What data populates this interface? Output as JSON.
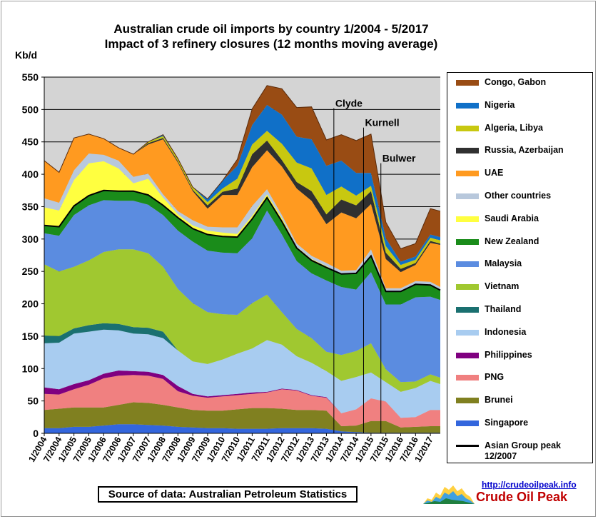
{
  "chart_data": {
    "type": "area",
    "title": "Australian crude oil imports  by country 1/2004 - 5/2017",
    "subtitle": "Impact of 3 refinery closures (12 months moving average)",
    "ylabel": "Kb/d",
    "ylim": [
      0,
      550
    ],
    "yticks": [
      0,
      50,
      100,
      150,
      200,
      250,
      300,
      350,
      400,
      450,
      500,
      550
    ],
    "grid": true,
    "stacked": true,
    "x": [
      "1/2004",
      "7/2004",
      "1/2005",
      "7/2005",
      "1/2006",
      "7/2006",
      "1/2007",
      "7/2007",
      "1/2008",
      "7/2008",
      "1/2009",
      "7/2009",
      "1/2010",
      "7/2010",
      "1/2011",
      "7/2011",
      "1/2012",
      "7/2012",
      "1/2013",
      "7/2013",
      "1/2014",
      "7/2014",
      "1/2015",
      "7/2015",
      "1/2016",
      "7/2016",
      "1/2017",
      "5/2017"
    ],
    "xticklabels": [
      "1/2004",
      "7/2004",
      "1/2005",
      "7/2005",
      "1/2006",
      "7/2006",
      "1/2007",
      "7/2007",
      "1/2008",
      "7/2008",
      "1/2009",
      "7/2009",
      "1/2010",
      "7/2010",
      "1/2011",
      "7/2011",
      "1/2012",
      "7/2012",
      "1/2013",
      "7/2013",
      "1/2014",
      "7/2014",
      "1/2015",
      "7/2015",
      "1/2016",
      "7/2016",
      "1/2017"
    ],
    "series": [
      {
        "name": "Singapore",
        "color": "#3366dd",
        "values": [
          8,
          8,
          10,
          10,
          12,
          14,
          14,
          13,
          12,
          10,
          9,
          8,
          8,
          7,
          7,
          7,
          8,
          8,
          8,
          7,
          3,
          2,
          1,
          1,
          1,
          1,
          1,
          1
        ]
      },
      {
        "name": "Brunei",
        "color": "#808020",
        "values": [
          28,
          30,
          30,
          30,
          28,
          30,
          34,
          34,
          32,
          30,
          27,
          27,
          27,
          30,
          32,
          32,
          30,
          28,
          28,
          28,
          8,
          10,
          18,
          18,
          8,
          9,
          10,
          10
        ]
      },
      {
        "name": "PNG",
        "color": "#f08080",
        "values": [
          25,
          22,
          28,
          35,
          45,
          45,
          42,
          42,
          40,
          25,
          22,
          20,
          22,
          22,
          22,
          24,
          30,
          30,
          22,
          20,
          20,
          25,
          35,
          30,
          15,
          15,
          25,
          25
        ]
      },
      {
        "name": "Philippines",
        "color": "#800080",
        "values": [
          10,
          8,
          8,
          7,
          7,
          8,
          6,
          6,
          6,
          8,
          3,
          2,
          2,
          2,
          2,
          1,
          1,
          1,
          1,
          1,
          0,
          0,
          0,
          0,
          0,
          0,
          0,
          0
        ]
      },
      {
        "name": "Indonesia",
        "color": "#a8ccf0",
        "values": [
          68,
          72,
          78,
          75,
          68,
          62,
          58,
          58,
          57,
          55,
          50,
          50,
          55,
          62,
          68,
          80,
          68,
          52,
          50,
          40,
          50,
          50,
          40,
          30,
          40,
          45,
          45,
          40
        ]
      },
      {
        "name": "Thailand",
        "color": "#1a7070",
        "values": [
          12,
          10,
          8,
          10,
          10,
          10,
          10,
          10,
          10,
          0,
          0,
          0,
          0,
          0,
          0,
          0,
          0,
          0,
          0,
          0,
          0,
          0,
          0,
          0,
          0,
          0,
          0,
          0
        ]
      },
      {
        "name": "Vietnam",
        "color": "#a0c830",
        "values": [
          110,
          100,
          95,
          100,
          110,
          115,
          120,
          115,
          100,
          95,
          90,
          80,
          70,
          60,
          70,
          70,
          50,
          42,
          38,
          30,
          40,
          40,
          45,
          20,
          15,
          10,
          10,
          10
        ]
      },
      {
        "name": "Malaysia",
        "color": "#5b8ce0",
        "values": [
          48,
          55,
          80,
          85,
          80,
          75,
          75,
          75,
          80,
          90,
          95,
          95,
          95,
          95,
          100,
          130,
          120,
          105,
          100,
          110,
          105,
          95,
          110,
          100,
          120,
          130,
          120,
          120
        ]
      },
      {
        "name": "New Zealand",
        "color": "#1a8c1a",
        "values": [
          12,
          14,
          14,
          15,
          15,
          15,
          15,
          15,
          15,
          20,
          20,
          25,
          25,
          25,
          30,
          20,
          20,
          20,
          20,
          20,
          20,
          25,
          25,
          20,
          20,
          20,
          18,
          15
        ]
      },
      {
        "name": "Saudi Arabia",
        "color": "#ffff40",
        "values": [
          28,
          25,
          40,
          50,
          45,
          35,
          12,
          25,
          12,
          5,
          5,
          6,
          6,
          5,
          5,
          5,
          5,
          2,
          2,
          2,
          0,
          0,
          0,
          0,
          0,
          0,
          0,
          0
        ]
      },
      {
        "name": "Other countries",
        "color": "#b8c8dc",
        "values": [
          14,
          12,
          15,
          15,
          10,
          12,
          10,
          8,
          5,
          5,
          8,
          6,
          8,
          10,
          15,
          8,
          5,
          5,
          5,
          5,
          5,
          5,
          10,
          5,
          5,
          5,
          5,
          5
        ]
      },
      {
        "name": "UAE",
        "color": "#ff9a20",
        "values": [
          58,
          47,
          50,
          30,
          25,
          20,
          35,
          45,
          85,
          75,
          45,
          28,
          50,
          50,
          60,
          60,
          75,
          85,
          85,
          60,
          90,
          80,
          70,
          45,
          25,
          25,
          60,
          65
        ]
      },
      {
        "name": "Russia, Azerbaijan",
        "color": "#303030",
        "values": [
          0,
          0,
          0,
          0,
          0,
          0,
          0,
          2,
          2,
          2,
          2,
          5,
          5,
          10,
          20,
          15,
          10,
          10,
          15,
          15,
          20,
          20,
          20,
          10,
          5,
          3,
          3,
          2
        ]
      },
      {
        "name": "Algeria, Libya",
        "color": "#c8c810",
        "values": [
          0,
          0,
          0,
          0,
          0,
          0,
          0,
          2,
          3,
          4,
          4,
          5,
          5,
          15,
          15,
          15,
          25,
          30,
          35,
          30,
          20,
          15,
          8,
          10,
          6,
          5,
          5,
          5
        ]
      },
      {
        "name": "Nigeria",
        "color": "#1070c8",
        "values": [
          0,
          0,
          0,
          0,
          0,
          0,
          0,
          0,
          2,
          0,
          0,
          5,
          12,
          20,
          30,
          40,
          45,
          40,
          45,
          45,
          40,
          35,
          20,
          12,
          5,
          5,
          5,
          5
        ]
      },
      {
        "name": "Congo, Gabon",
        "color": "#994c14",
        "values": [
          0,
          0,
          0,
          0,
          0,
          0,
          0,
          0,
          0,
          0,
          0,
          0,
          0,
          10,
          25,
          30,
          40,
          45,
          50,
          40,
          40,
          50,
          60,
          25,
          20,
          20,
          40,
          40
        ]
      }
    ],
    "line_series": {
      "name": "Asian Group peak 12/2007",
      "color": "#000000"
    },
    "annotations": [
      {
        "text": "Clyde",
        "x": "10/2013",
        "y": 510
      },
      {
        "text": "Kurnell",
        "x": "10/2014",
        "y": 480
      },
      {
        "text": "Bulwer",
        "x": "5/2015",
        "y": 425
      }
    ],
    "event_lines": [
      "10/2013",
      "10/2014",
      "5/2015"
    ],
    "legend": {
      "placement": "right"
    }
  },
  "footer": {
    "source": "Source of data: Australian Petroleum Statistics",
    "url": "http://crudeoilpeak.info",
    "brand": "Crude Oil Peak"
  }
}
